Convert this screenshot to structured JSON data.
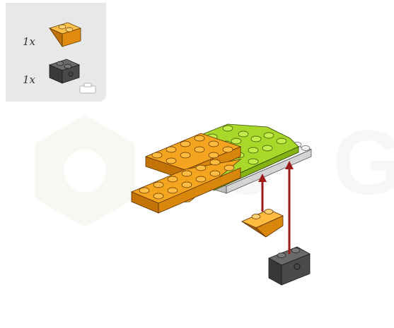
{
  "parts_list": {
    "items": [
      {
        "quantity": "1x",
        "part": "orange-inverted-slope-brick-icon",
        "color": "#f09a14"
      },
      {
        "quantity": "1x",
        "part": "dark-gray-technic-brick-icon",
        "color": "#4e4e4e"
      }
    ]
  },
  "colors": {
    "orange": "#f09a14",
    "lime": "#97cb1b",
    "light_gray": "#dcdcdc",
    "dark_gray": "#4e4e4e",
    "arrow": "#9e1b1b",
    "panel": "#e8e8e8"
  }
}
